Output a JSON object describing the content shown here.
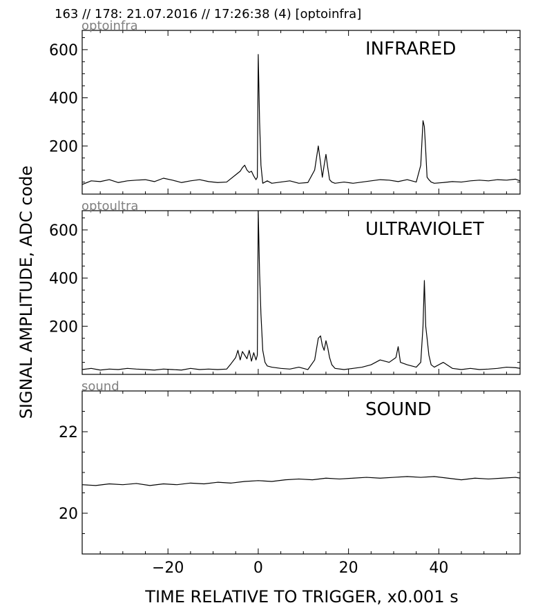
{
  "header_title": "163 // 178:   21.07.2016 // 17:26:38 (4)  [optoinfra]",
  "y_axis_label": "SIGNAL AMPLITUDE,  ADC code",
  "x_axis_label": "TIME RELATIVE TO TRIGGER,   x0.001 s",
  "chart_data": [
    {
      "type": "line",
      "panel_label": "optoinfra",
      "title": "INFRARED",
      "xlim": [
        -39,
        58
      ],
      "ylim": [
        0,
        680
      ],
      "x_ticks": [
        -20,
        0,
        20,
        40
      ],
      "x_tick_labels": [
        "",
        "",
        "",
        ""
      ],
      "y_ticks": [
        200,
        400,
        600
      ],
      "y_tick_labels": [
        "200",
        "400",
        "600"
      ],
      "grid": false,
      "series": [
        {
          "x": [
            -39,
            -37,
            -35,
            -33,
            -31,
            -29,
            -27,
            -25,
            -23,
            -21,
            -19,
            -17,
            -15,
            -13,
            -11,
            -9,
            -7,
            -5,
            -4,
            -3.5,
            -3,
            -2.5,
            -2,
            -1.5,
            -1,
            -0.5,
            -0.2,
            0,
            0.3,
            0.6,
            1,
            1.5,
            2,
            3,
            5,
            7,
            9,
            11,
            12.5,
            13.3,
            13.8,
            14.2,
            14.6,
            15,
            15.4,
            15.8,
            16.3,
            17,
            19,
            21,
            23,
            25,
            27,
            29,
            31,
            33,
            35,
            36,
            36.5,
            36.8,
            37.1,
            37.4,
            37.8,
            38.3,
            39,
            41,
            43,
            45,
            47,
            49,
            51,
            53,
            55,
            57,
            58
          ],
          "y": [
            40,
            55,
            52,
            60,
            48,
            55,
            58,
            60,
            52,
            66,
            58,
            48,
            55,
            60,
            52,
            48,
            50,
            80,
            95,
            110,
            120,
            100,
            90,
            95,
            75,
            60,
            70,
            580,
            300,
            120,
            45,
            50,
            55,
            45,
            50,
            55,
            45,
            48,
            100,
            200,
            130,
            70,
            120,
            165,
            110,
            60,
            50,
            45,
            50,
            45,
            50,
            55,
            60,
            58,
            52,
            60,
            50,
            120,
            305,
            280,
            180,
            70,
            60,
            50,
            45,
            48,
            52,
            50,
            55,
            58,
            55,
            60,
            58,
            62,
            55
          ]
        }
      ]
    },
    {
      "type": "line",
      "panel_label": "optoultra",
      "title": "ULTRAVIOLET",
      "xlim": [
        -39,
        58
      ],
      "ylim": [
        0,
        680
      ],
      "x_ticks": [
        -20,
        0,
        20,
        40
      ],
      "x_tick_labels": [
        "",
        "",
        "",
        ""
      ],
      "y_ticks": [
        200,
        400,
        600
      ],
      "y_tick_labels": [
        "200",
        "400",
        "600"
      ],
      "grid": false,
      "series": [
        {
          "x": [
            -39,
            -37,
            -35,
            -33,
            -31,
            -29,
            -27,
            -25,
            -23,
            -21,
            -19,
            -17,
            -15,
            -13,
            -11,
            -9,
            -7,
            -6,
            -5,
            -4.5,
            -4,
            -3.5,
            -3,
            -2.5,
            -2,
            -1.5,
            -1,
            -0.5,
            -0.2,
            0,
            0.3,
            0.6,
            1,
            1.5,
            2,
            3,
            5,
            7,
            9,
            11,
            12.5,
            13.3,
            13.8,
            14.2,
            14.6,
            15,
            15.4,
            15.8,
            16.3,
            17,
            19,
            21,
            23,
            25,
            27,
            29,
            30.5,
            31,
            31.5,
            33,
            35,
            36,
            36.5,
            36.8,
            37.1,
            37.4,
            37.8,
            38.3,
            39,
            41,
            43,
            45,
            47,
            49,
            51,
            53,
            55,
            57,
            58
          ],
          "y": [
            20,
            25,
            18,
            22,
            20,
            25,
            22,
            20,
            18,
            22,
            20,
            18,
            25,
            20,
            22,
            20,
            22,
            45,
            70,
            100,
            60,
            95,
            80,
            65,
            100,
            55,
            90,
            60,
            80,
            680,
            420,
            250,
            100,
            50,
            35,
            30,
            25,
            22,
            30,
            20,
            60,
            150,
            160,
            120,
            100,
            140,
            110,
            70,
            40,
            25,
            20,
            25,
            30,
            40,
            60,
            50,
            70,
            115,
            50,
            40,
            30,
            50,
            200,
            390,
            200,
            150,
            80,
            40,
            30,
            50,
            25,
            20,
            25,
            20,
            22,
            25,
            30,
            28,
            25
          ]
        }
      ]
    },
    {
      "type": "line",
      "panel_label": "sound",
      "title": "SOUND",
      "xlim": [
        -39,
        58
      ],
      "ylim": [
        19.0,
        23.0
      ],
      "x_ticks": [
        -20,
        0,
        20,
        40
      ],
      "x_tick_labels": [
        "−20",
        "0",
        "20",
        "40"
      ],
      "y_ticks": [
        20,
        22
      ],
      "y_tick_labels": [
        "20",
        "22"
      ],
      "grid": false,
      "series": [
        {
          "x": [
            -39,
            -36,
            -33,
            -30,
            -27,
            -24,
            -21,
            -18,
            -15,
            -12,
            -9,
            -6,
            -3,
            0,
            3,
            6,
            9,
            12,
            15,
            18,
            21,
            24,
            27,
            30,
            33,
            36,
            39,
            42,
            45,
            48,
            51,
            54,
            57,
            58
          ],
          "y": [
            20.7,
            20.68,
            20.72,
            20.7,
            20.73,
            20.68,
            20.72,
            20.7,
            20.74,
            20.72,
            20.76,
            20.74,
            20.78,
            20.8,
            20.78,
            20.82,
            20.84,
            20.82,
            20.86,
            20.84,
            20.86,
            20.88,
            20.86,
            20.88,
            20.9,
            20.88,
            20.9,
            20.86,
            20.82,
            20.86,
            20.84,
            20.86,
            20.88,
            20.86
          ]
        }
      ]
    }
  ]
}
